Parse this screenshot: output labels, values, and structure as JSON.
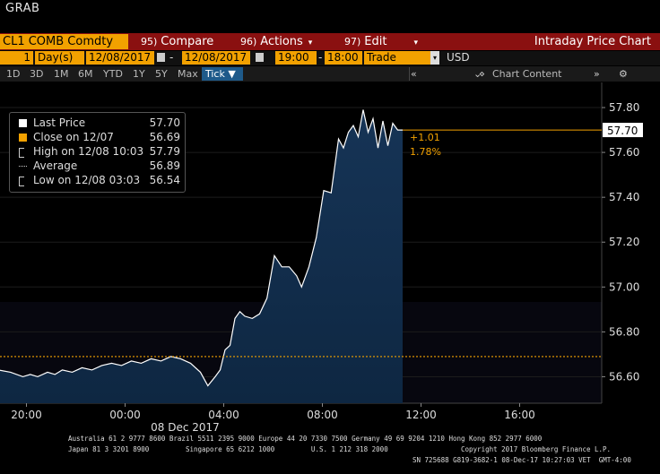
{
  "window": {
    "title": "GRAB"
  },
  "toolbar": {
    "ticker": "CL1 COMB Comdty",
    "menus": [
      {
        "num": "95)",
        "label": "Compare"
      },
      {
        "num": "96)",
        "label": "Actions"
      },
      {
        "num": "97)",
        "label": "Edit"
      }
    ],
    "chart_title": "Intraday Price Chart"
  },
  "daterow": {
    "period_value": "1",
    "period_unit": "Day(s)",
    "start_date": "12/08/2017",
    "end_date": "12/08/2017",
    "start_time": "19:00",
    "end_time": "18:00",
    "field": "Trade",
    "currency": "USD"
  },
  "rangerow": {
    "ranges": [
      "1D",
      "3D",
      "1M",
      "6M",
      "YTD",
      "1Y",
      "5Y",
      "Max"
    ],
    "tick_label": "Tick",
    "chart_content": "Chart Content"
  },
  "legend": {
    "rows": [
      {
        "label": "Last Price",
        "value": "57.70"
      },
      {
        "label": "Close on 12/07",
        "value": "56.69"
      },
      {
        "label": "High on 12/08 10:03",
        "value": "57.79"
      },
      {
        "label": "Average",
        "value": "56.89"
      },
      {
        "label": "Low on 12/08 03:03",
        "value": "56.54"
      }
    ],
    "colors": {
      "last": "#ffffff",
      "close": "#f2a100"
    }
  },
  "colors": {
    "area_top": "#163456",
    "line": "#ffffff",
    "close_line": "#f2a100",
    "accent": "#f2a100",
    "header_red": "#8a1010"
  },
  "chart_data": {
    "type": "area",
    "x_tick_labels": [
      "20:00",
      "00:00",
      "04:00",
      "08:00",
      "12:00",
      "16:00"
    ],
    "x_date_label": "08 Dec 2017",
    "y_tick_labels": [
      "57.80",
      "57.60",
      "57.40",
      "57.20",
      "57.00",
      "56.80",
      "56.60"
    ],
    "ylim": [
      56.45,
      57.88
    ],
    "xlim_hours": [
      19,
      42
    ],
    "last_price": "57.70",
    "close_price": 56.69,
    "change": "+1.01",
    "change_pct": "1.78%",
    "series": [
      {
        "name": "Last Price",
        "hours": [
          19.0,
          19.5,
          20.0,
          20.3,
          20.6,
          21.0,
          21.3,
          21.6,
          22.0,
          22.4,
          22.8,
          23.2,
          23.6,
          24.0,
          24.4,
          24.8,
          25.2,
          25.6,
          26.0,
          26.4,
          26.8,
          27.2,
          27.5,
          27.8,
          28.0,
          28.2,
          28.4,
          28.6,
          28.8,
          29.0,
          29.3,
          29.6,
          29.9,
          30.2,
          30.5,
          30.8,
          31.1,
          31.3,
          31.6,
          31.9,
          32.2,
          32.5,
          32.8,
          33.0,
          33.2,
          33.4,
          33.6,
          33.8,
          34.0,
          34.2,
          34.4,
          34.6,
          34.8,
          35.0,
          35.2,
          35.4
        ],
        "values": [
          56.63,
          56.62,
          56.6,
          56.61,
          56.6,
          56.62,
          56.61,
          56.63,
          56.62,
          56.64,
          56.63,
          56.65,
          56.66,
          56.65,
          56.67,
          56.66,
          56.68,
          56.67,
          56.69,
          56.68,
          56.66,
          56.62,
          56.56,
          56.6,
          56.63,
          56.72,
          56.74,
          56.86,
          56.89,
          56.87,
          56.86,
          56.88,
          56.95,
          57.14,
          57.09,
          57.09,
          57.05,
          57.0,
          57.09,
          57.22,
          57.43,
          57.42,
          57.66,
          57.62,
          57.69,
          57.72,
          57.67,
          57.79,
          57.69,
          57.75,
          57.62,
          57.74,
          57.63,
          57.73,
          57.7,
          57.7
        ]
      }
    ]
  },
  "footer": {
    "line1": "Australia 61 2 9777 8600 Brazil 5511 2395 9000 Europe 44 20 7330 7500 Germany 49 69 9204 1210 Hong Kong 852 2977 6000",
    "line2": "Japan 81 3 3201 8900         Singapore 65 6212 1000         U.S. 1 212 318 2000                  Copyright 2017 Bloomberg Finance L.P.",
    "line3": "SN 725688 G819-3682-1 08-Dec-17 10:27:03 VET  GMT-4:00"
  }
}
